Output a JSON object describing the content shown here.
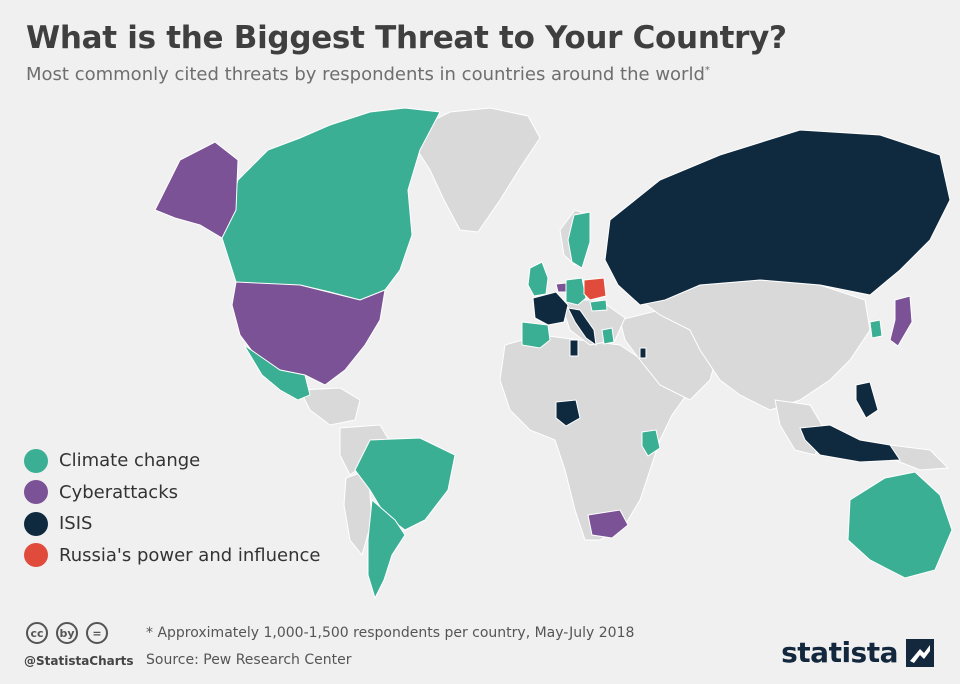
{
  "header": {
    "title": "What is the Biggest Threat to Your Country?",
    "subtitle": "Most commonly cited threats by respondents in countries around the world",
    "subtitle_mark": "*"
  },
  "legend": [
    {
      "label": "Climate change",
      "color": "#3aaf93"
    },
    {
      "label": "Cyberattacks",
      "color": "#7a5295"
    },
    {
      "label": "ISIS",
      "color": "#0f2a3f"
    },
    {
      "label": "Russia's power and influence",
      "color": "#e04b3c"
    }
  ],
  "map_colors": {
    "land_default": "#d9d9d9",
    "border": "#ffffff",
    "background": "#f0f0f0"
  },
  "countries": [
    {
      "name": "Canada",
      "threat": "Climate change"
    },
    {
      "name": "Mexico",
      "threat": "Climate change"
    },
    {
      "name": "Brazil",
      "threat": "Climate change"
    },
    {
      "name": "Argentina",
      "threat": "Climate change"
    },
    {
      "name": "United Kingdom",
      "threat": "Climate change"
    },
    {
      "name": "Spain",
      "threat": "Climate change"
    },
    {
      "name": "Germany",
      "threat": "Climate change"
    },
    {
      "name": "Sweden",
      "threat": "Climate change"
    },
    {
      "name": "Hungary",
      "threat": "Climate change"
    },
    {
      "name": "Greece",
      "threat": "Climate change"
    },
    {
      "name": "Kenya",
      "threat": "Climate change"
    },
    {
      "name": "South Korea",
      "threat": "Climate change"
    },
    {
      "name": "Australia",
      "threat": "Climate change"
    },
    {
      "name": "United States",
      "threat": "Cyberattacks"
    },
    {
      "name": "Netherlands",
      "threat": "Cyberattacks"
    },
    {
      "name": "Japan",
      "threat": "Cyberattacks"
    },
    {
      "name": "South Africa",
      "threat": "Cyberattacks"
    },
    {
      "name": "Russia",
      "threat": "ISIS"
    },
    {
      "name": "France",
      "threat": "ISIS"
    },
    {
      "name": "Italy",
      "threat": "ISIS"
    },
    {
      "name": "Tunisia",
      "threat": "ISIS"
    },
    {
      "name": "Nigeria",
      "threat": "ISIS"
    },
    {
      "name": "Israel",
      "threat": "ISIS"
    },
    {
      "name": "Lebanon",
      "threat": "ISIS"
    },
    {
      "name": "Indonesia",
      "threat": "ISIS"
    },
    {
      "name": "Philippines",
      "threat": "ISIS"
    },
    {
      "name": "Poland",
      "threat": "Russia's power and influence"
    }
  ],
  "footer": {
    "note": "* Approximately 1,000-1,500 respondents per country, May-July 2018",
    "source": "Source: Pew Research Center",
    "handle": "@StatistaCharts",
    "brand": "statista",
    "cc_icons": [
      "cc",
      "by",
      "="
    ]
  }
}
